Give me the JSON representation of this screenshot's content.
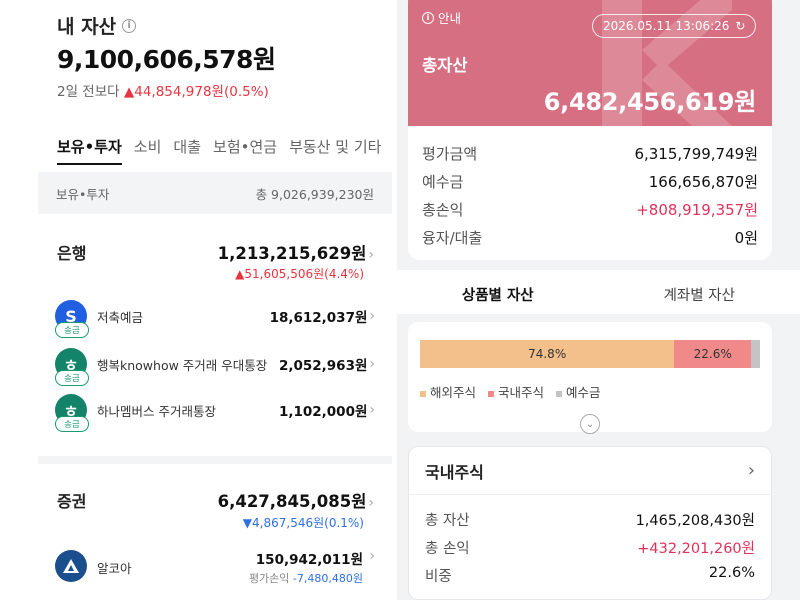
{
  "left": {
    "title": "내 자산",
    "info_symbol": "i",
    "total_amount": "9,100,606,578원",
    "change_prefix": "2일 전보다",
    "change_value": "▲44,854,978원(0.5%)",
    "tabs": [
      "보유•투자",
      "소비",
      "대출",
      "보험•연금",
      "부동산 및 기타"
    ],
    "summary_label": "보유•투자",
    "summary_value": "총 9,026,939,230원",
    "bank": {
      "title": "은행",
      "amount": "1,213,215,629원",
      "change": "▲51,605,506원(4.4%)",
      "items": [
        {
          "name": "저축예금",
          "value": "18,612,037원",
          "badge": "송금",
          "logo_color": "#1f5fe0",
          "logo_glyph": "S"
        },
        {
          "name": "행복knowhow 주거래 우대통장",
          "value": "2,052,963원",
          "badge": "송금",
          "logo_color": "#13836a",
          "logo_glyph": "ㅎ"
        },
        {
          "name": "하나멤버스 주거래통장",
          "value": "1,102,000원",
          "badge": "송금",
          "logo_color": "#13836a",
          "logo_glyph": "ㅎ"
        }
      ]
    },
    "securities": {
      "title": "증권",
      "amount": "6,427,845,085원",
      "change": "▼4,867,546원(0.1%)",
      "item": {
        "name": "알코아",
        "value": "150,942,011원",
        "sub_label": "평가손익",
        "sub_value": "-7,480,480원",
        "logo_color": "#1a4e8c"
      }
    },
    "chevron": "›"
  },
  "right": {
    "info_label": "안내",
    "timestamp": "2026.05.11 13:06:26",
    "refresh_icon": "↻",
    "total_label": "총자산",
    "total_amount": "6,482,456,619원",
    "details": [
      {
        "k": "평가금액",
        "v": "6,315,799,749원"
      },
      {
        "k": "예수금",
        "v": "166,656,870원"
      },
      {
        "k": "총손익",
        "v": "+808,919,357원"
      },
      {
        "k": "융자/대출",
        "v": "0원"
      }
    ],
    "subtabs": [
      "상품별 자산",
      "계좌별 자산"
    ],
    "allocation": {
      "segments": [
        {
          "label": "해외주식",
          "pct": 74.8,
          "text": "74.8%",
          "color": "#f3c08c"
        },
        {
          "label": "국내주식",
          "pct": 22.6,
          "text": "22.6%",
          "color": "#f08a8a"
        },
        {
          "label": "예수금",
          "pct": 2.6,
          "text": "",
          "color": "#c4c4c4"
        }
      ]
    },
    "expand_icon": "⌄",
    "domestic": {
      "title": "국내주식",
      "chevron": "›",
      "rows": [
        {
          "k": "총 자산",
          "v": "1,465,208,430원"
        },
        {
          "k": "총 손익",
          "v": "+432,201,260원"
        },
        {
          "k": "비중",
          "v": "22.6%"
        }
      ]
    }
  }
}
